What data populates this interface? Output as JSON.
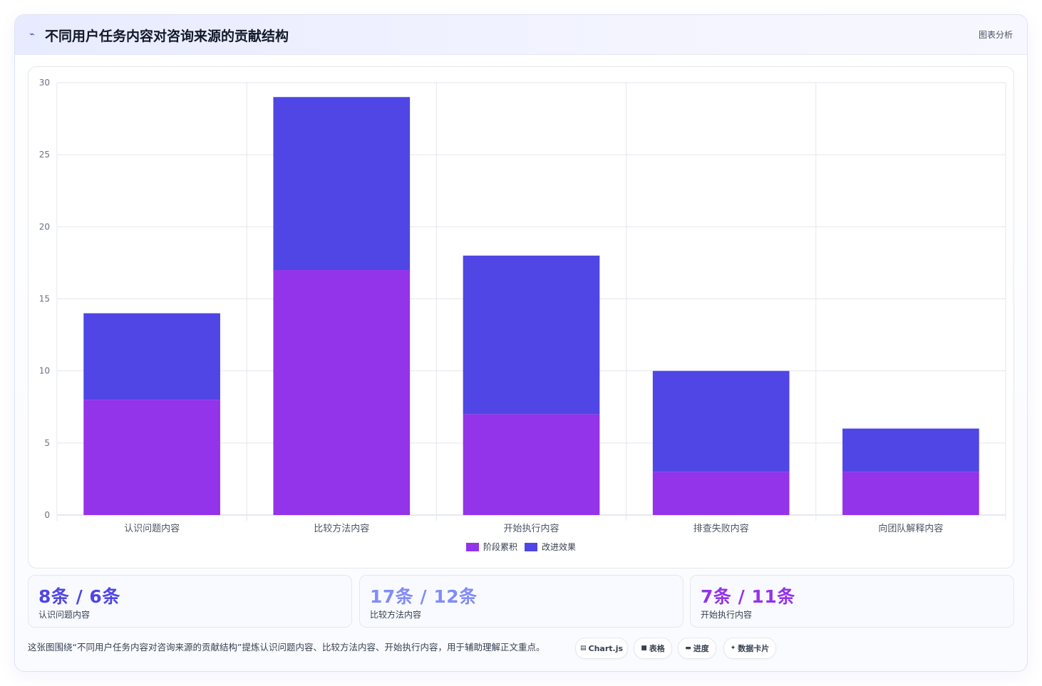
{
  "header": {
    "icon": "trend-line-icon",
    "title": "不同用户任务内容对咨询来源的贡献结构",
    "action_label": "图表分析"
  },
  "colors": {
    "series1": "#9333ea",
    "series2": "#4f46e5",
    "grid": "#e5e7eb",
    "stat1": "#4f46e5",
    "stat2": "#818cf8",
    "stat3": "#9333ea"
  },
  "chart_data": {
    "type": "bar",
    "stacked": true,
    "categories": [
      "认识问题内容",
      "比较方法内容",
      "开始执行内容",
      "排查失败内容",
      "向团队解释内容"
    ],
    "series": [
      {
        "name": "阶段累积",
        "values": [
          8,
          17,
          7,
          3,
          3
        ]
      },
      {
        "name": "改进效果",
        "values": [
          6,
          12,
          11,
          7,
          3
        ]
      }
    ],
    "ylim": [
      0,
      30
    ],
    "yticks": [
      0,
      5,
      10,
      15,
      20,
      25,
      30
    ],
    "grid": true,
    "legend": "bottom-center"
  },
  "stats": [
    {
      "value": "8条 / 6条",
      "label": "认识问题内容"
    },
    {
      "value": "17条 / 12条",
      "label": "比较方法内容"
    },
    {
      "value": "7条 / 11条",
      "label": "开始执行内容"
    }
  ],
  "footer": {
    "text": "这张图围绕“不同用户任务内容对咨询来源的贡献结构”提炼认识问题内容、比较方法内容、开始执行内容，用于辅助理解正文重点。",
    "tags": [
      {
        "icon": "chart-icon",
        "glyph": "▤",
        "label": "Chart.js"
      },
      {
        "icon": "table-icon",
        "glyph": "■",
        "label": "表格"
      },
      {
        "icon": "progress-icon",
        "glyph": "▬",
        "label": "进度"
      },
      {
        "icon": "sparkle-icon",
        "glyph": "✦",
        "label": "数据卡片"
      }
    ]
  }
}
